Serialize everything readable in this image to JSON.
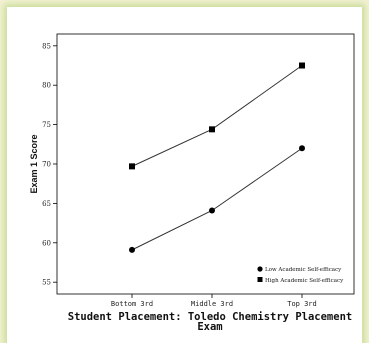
{
  "chart_data": {
    "type": "line",
    "title": "",
    "ylabel": "Exam 1 Score",
    "xlabel_line1": "Student Placement: Toledo Chemistry Placement",
    "xlabel_line2": "Exam",
    "categories": [
      "Bottom 3rd",
      "Middle 3rd",
      "Top 3rd"
    ],
    "ylim": [
      53.5,
      86.5
    ],
    "yticks": [
      "55",
      "60",
      "65",
      "70",
      "75",
      "80",
      "85"
    ],
    "ytick_values": [
      55,
      60,
      65,
      70,
      75,
      80,
      85
    ],
    "grid": false,
    "legend_position": "bottom-right",
    "series": [
      {
        "name": "Low Academic Self-efficacy",
        "marker": "circle",
        "values": [
          59.1,
          64.1,
          72.0
        ]
      },
      {
        "name": "High Academic Self-efficacy",
        "marker": "square",
        "values": [
          69.7,
          74.4,
          82.5
        ]
      }
    ],
    "colors": {
      "line": "#333333",
      "marker": "#000000"
    }
  }
}
